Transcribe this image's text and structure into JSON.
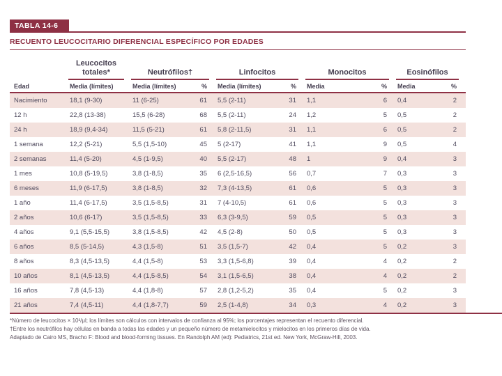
{
  "slide": {
    "table_label": "TABLA 14-6",
    "title": "RECUENTO LEUCOCITARIO DIFERENCIAL ESPECÍFICO POR EDADES"
  },
  "table": {
    "edad_header": "Edad",
    "groups": [
      {
        "label": "Leucocitos totales*",
        "subheaders": [
          "Media (límites)"
        ]
      },
      {
        "label": "Neutrófilos†",
        "subheaders": [
          "Media (límites)",
          "%"
        ]
      },
      {
        "label": "Linfocitos",
        "subheaders": [
          "Media (límites)",
          "%"
        ]
      },
      {
        "label": "Monocitos",
        "subheaders": [
          "Media",
          "%"
        ]
      },
      {
        "label": "Eosinófilos",
        "subheaders": [
          "Media",
          "%"
        ]
      }
    ],
    "rows": [
      {
        "edad": "Nacimiento",
        "cells": [
          "18,1 (9-30)",
          "11 (6-25)",
          "61",
          "5,5 (2-11)",
          "31",
          "1,1",
          "6",
          "0,4",
          "2"
        ]
      },
      {
        "edad": "12 h",
        "cells": [
          "22,8 (13-38)",
          "15,5 (6-28)",
          "68",
          "5,5 (2-11)",
          "24",
          "1,2",
          "5",
          "0,5",
          "2"
        ]
      },
      {
        "edad": "24 h",
        "cells": [
          "18,9 (9,4-34)",
          "11,5 (5-21)",
          "61",
          "5,8 (2-11,5)",
          "31",
          "1,1",
          "6",
          "0,5",
          "2"
        ]
      },
      {
        "edad": "1 semana",
        "cells": [
          "12,2 (5-21)",
          "5,5 (1,5-10)",
          "45",
          "5 (2-17)",
          "41",
          "1,1",
          "9",
          "0,5",
          "4"
        ]
      },
      {
        "edad": "2 semanas",
        "cells": [
          "11,4 (5-20)",
          "4,5 (1-9,5)",
          "40",
          "5,5 (2-17)",
          "48",
          "1",
          "9",
          "0,4",
          "3"
        ]
      },
      {
        "edad": "1 mes",
        "cells": [
          "10,8 (5-19,5)",
          "3,8 (1-8,5)",
          "35",
          "6 (2,5-16,5)",
          "56",
          "0,7",
          "7",
          "0,3",
          "3"
        ]
      },
      {
        "edad": "6 meses",
        "cells": [
          "11,9 (6-17,5)",
          "3,8 (1-8,5)",
          "32",
          "7,3 (4-13,5)",
          "61",
          "0,6",
          "5",
          "0,3",
          "3"
        ]
      },
      {
        "edad": "1 año",
        "cells": [
          "11,4 (6-17,5)",
          "3,5 (1,5-8,5)",
          "31",
          "7 (4-10,5)",
          "61",
          "0,6",
          "5",
          "0,3",
          "3"
        ]
      },
      {
        "edad": "2 años",
        "cells": [
          "10,6 (6-17)",
          "3,5 (1,5-8,5)",
          "33",
          "6,3 (3-9,5)",
          "59",
          "0,5",
          "5",
          "0,3",
          "3"
        ]
      },
      {
        "edad": "4 años",
        "cells": [
          "9,1 (5,5-15,5)",
          "3,8 (1,5-8,5)",
          "42",
          "4,5 (2-8)",
          "50",
          "0,5",
          "5",
          "0,3",
          "3"
        ]
      },
      {
        "edad": "6 años",
        "cells": [
          "8,5 (5-14,5)",
          "4,3 (1,5-8)",
          "51",
          "3,5 (1,5-7)",
          "42",
          "0,4",
          "5",
          "0,2",
          "3"
        ]
      },
      {
        "edad": "8 años",
        "cells": [
          "8,3 (4,5-13,5)",
          "4,4 (1,5-8)",
          "53",
          "3,3 (1,5-6,8)",
          "39",
          "0,4",
          "4",
          "0,2",
          "2"
        ]
      },
      {
        "edad": "10 años",
        "cells": [
          "8,1 (4,5-13,5)",
          "4,4 (1,5-8,5)",
          "54",
          "3,1 (1,5-6,5)",
          "38",
          "0,4",
          "4",
          "0,2",
          "2"
        ]
      },
      {
        "edad": "16 años",
        "cells": [
          "7,8 (4,5-13)",
          "4,4 (1,8-8)",
          "57",
          "2,8 (1,2-5,2)",
          "35",
          "0,4",
          "5",
          "0,2",
          "3"
        ]
      },
      {
        "edad": "21 años",
        "cells": [
          "7,4 (4,5-11)",
          "4,4 (1,8-7,7)",
          "59",
          "2,5 (1-4,8)",
          "34",
          "0,3",
          "4",
          "0,2",
          "3"
        ]
      }
    ],
    "footnotes": [
      "*Número de leucocitos × 10³/μl; los límites son cálculos con intervalos de confianza al 95%; los porcentajes representan el recuento diferencial.",
      "†Entre los neutrófilos hay células en banda a todas las edades y un pequeño número de metamielocitos y mielocitos en los primeros días de vida.",
      "Adaptado de Cairo MS, Bracho F: Blood and blood-forming tissues. En Randolph AM (ed): Pediatrics, 21st ed. New York, McGraw-Hill, 2003."
    ]
  },
  "colors": {
    "maroon": "#8e3044",
    "stripe": "#f3e1dd",
    "text": "#4f4a5e"
  }
}
